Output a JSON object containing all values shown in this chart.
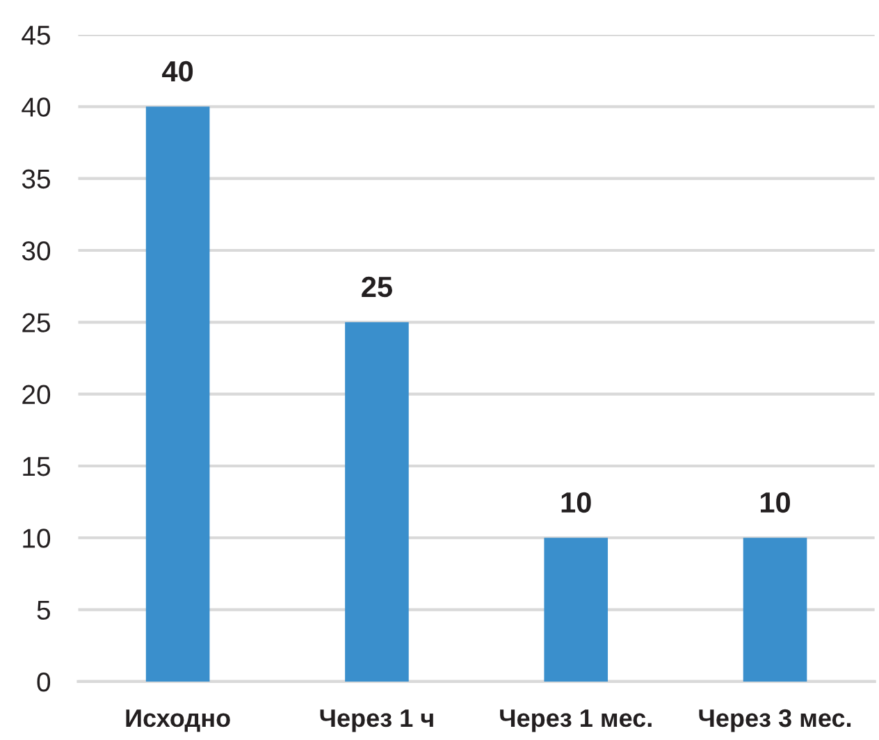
{
  "chart_data": {
    "type": "bar",
    "categories": [
      "Исходно",
      "Через 1 ч",
      "Через 1 мес.",
      "Через 3 мес."
    ],
    "values": [
      40,
      25,
      10,
      10
    ],
    "color": "#3a8fcc",
    "ylim": [
      0,
      45
    ],
    "yticks": [
      0,
      5,
      10,
      15,
      20,
      25,
      30,
      35,
      40,
      45
    ],
    "grid": "y",
    "data_labels": true
  }
}
